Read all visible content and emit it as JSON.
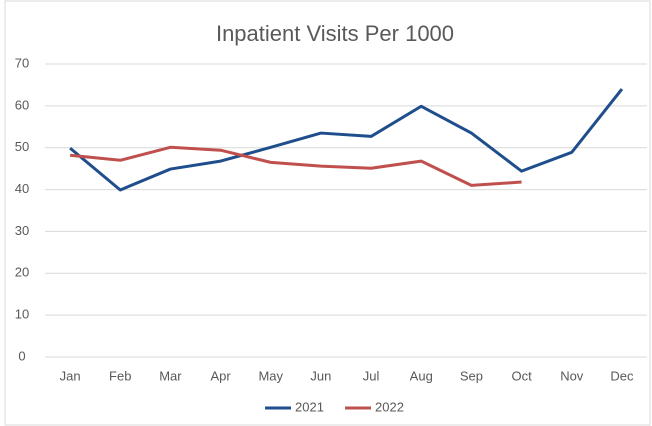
{
  "chart_data": {
    "type": "line",
    "title": "Inpatient Visits Per 1000",
    "categories": [
      "Jan",
      "Feb",
      "Mar",
      "Apr",
      "May",
      "Jun",
      "Jul",
      "Aug",
      "Sep",
      "Oct",
      "Nov",
      "Dec"
    ],
    "series": [
      {
        "name": "2021",
        "color": "#1f4e8c",
        "values": [
          49.9,
          39.9,
          44.9,
          46.8,
          50.1,
          53.5,
          52.7,
          59.9,
          53.5,
          44.4,
          48.9,
          64
        ]
      },
      {
        "name": "2022",
        "color": "#c0504d",
        "values": [
          48.2,
          47,
          50.1,
          49.4,
          46.5,
          45.6,
          45.1,
          46.8,
          41,
          41.8,
          null,
          null
        ]
      }
    ],
    "ylim": [
      0,
      70
    ],
    "yticks": [
      0,
      10,
      20,
      30,
      40,
      50,
      60,
      70
    ],
    "grid": true,
    "legend": "bottom"
  }
}
